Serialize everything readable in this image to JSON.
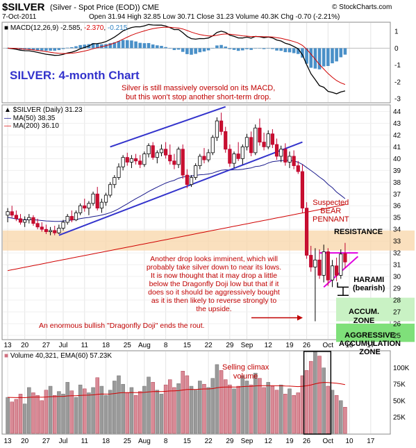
{
  "header": {
    "symbol": "$SILVER",
    "name": "(Silver - Spot Price (EOD))",
    "exchange": "CME",
    "source": "© StockCharts.com",
    "date": "7-Oct-2011",
    "ohlc": "Open 31.94  High 32.85  Low 30.71  Close 31.23  Volume 40.3K  Chg -0.70 (-2.21%)"
  },
  "macd": {
    "label_name": "MACD(12,26,9)",
    "label_v1": "-2.585",
    "label_v2": "-2.370",
    "label_v3": "-0.215",
    "axis": [
      "1",
      "0",
      "-1",
      "-2",
      "-3"
    ],
    "title": "SILVER: 4-month Chart",
    "note": [
      "Silver is still massively oversold on its MACD,",
      "but this won't stop another short-term drop."
    ]
  },
  "price": {
    "label_main": "$SILVER (Daily) 31.23",
    "label_ma50": "MA(50) 38.35",
    "label_ma200": "MA(200) 36.10",
    "axis": [
      "44",
      "43",
      "42",
      "41",
      "40",
      "39",
      "38",
      "37",
      "36",
      "35",
      "34",
      "33",
      "32",
      "31",
      "30",
      "29",
      "28",
      "27",
      "26",
      "25"
    ],
    "ann_bear": [
      "Suspected",
      "BEAR",
      "PENNANT"
    ],
    "ann_resistance": "RESISTANCE",
    "ann_harami": [
      "HARAMI",
      "(bearish)"
    ],
    "ann_accum": [
      "ACCUM.",
      "ZONE"
    ],
    "ann_aggressive": [
      "AGGRESSIVE",
      "ACCUMULATION",
      "ZONE"
    ],
    "ann_main": [
      "Another drop looks imminent, which will",
      "probably take silver down to near its lows.",
      "It is now thought that it may drop a little",
      "below the Dragonfly Doji low but that if it",
      "does so it should be aggressively bought",
      "as it is then likely to reverse strongly to",
      "the upside."
    ],
    "ann_doji": "An enormous bullish \"Dragonfly Doji\" ends the rout."
  },
  "volume": {
    "label": "Volume 40,321, EMA(60) 57.23K",
    "axis": [
      "100K",
      "75K",
      "50K",
      "25K"
    ],
    "ann_climax": [
      "Selling climax",
      "volume"
    ]
  },
  "xaxis": {
    "ticks": [
      "13",
      "20",
      "27",
      "Jul",
      "11",
      "18",
      "25",
      "Aug",
      "8",
      "15",
      "22",
      "29",
      "Sep",
      "12",
      "19",
      "26",
      "Oct",
      "10",
      "17"
    ]
  },
  "chart_data": {
    "type": "candlestick",
    "title": "SILVER: 4-month Chart",
    "x_ticks": [
      "13",
      "20",
      "27",
      "Jul",
      "11",
      "18",
      "25",
      "Aug",
      "8",
      "15",
      "22",
      "29",
      "Sep",
      "12",
      "19",
      "26",
      "Oct",
      "10",
      "17"
    ],
    "price_ylim": [
      24.7,
      44.5
    ],
    "macd_ylim": [
      -3.2,
      1.5
    ],
    "volume_ylim": [
      0,
      125
    ],
    "last": {
      "open": 31.94,
      "high": 32.85,
      "low": 30.71,
      "close": 31.23,
      "volume": 40321,
      "ma50": 38.35,
      "ma200": 36.1,
      "macd": -2.585,
      "signal": -2.37,
      "histogram": -0.215,
      "volume_ema60": 57230
    },
    "candles": [
      [
        35.2,
        35.8,
        34.6,
        35.5
      ],
      [
        35.5,
        36.0,
        35.0,
        35.2
      ],
      [
        35.2,
        35.6,
        34.7,
        34.9
      ],
      [
        34.9,
        35.3,
        34.4,
        34.6
      ],
      [
        34.6,
        35.1,
        34.2,
        34.8
      ],
      [
        34.8,
        35.3,
        34.5,
        35.0
      ],
      [
        35.0,
        35.2,
        34.3,
        34.5
      ],
      [
        34.5,
        34.9,
        34.0,
        34.2
      ],
      [
        34.2,
        34.6,
        33.8,
        34.0
      ],
      [
        34.0,
        34.4,
        33.6,
        33.8
      ],
      [
        33.8,
        34.2,
        33.5,
        33.9
      ],
      [
        33.9,
        34.3,
        33.5,
        33.7
      ],
      [
        33.7,
        34.4,
        33.6,
        34.1
      ],
      [
        34.1,
        34.8,
        33.9,
        34.6
      ],
      [
        34.6,
        35.3,
        34.4,
        35.1
      ],
      [
        35.1,
        35.6,
        34.6,
        34.8
      ],
      [
        34.8,
        35.6,
        34.7,
        35.4
      ],
      [
        35.4,
        36.2,
        35.2,
        36.0
      ],
      [
        36.0,
        36.6,
        35.5,
        35.8
      ],
      [
        35.8,
        36.4,
        35.2,
        36.2
      ],
      [
        36.2,
        37.2,
        36.0,
        37.0
      ],
      [
        37.0,
        37.6,
        35.6,
        35.8
      ],
      [
        35.8,
        36.6,
        35.4,
        36.3
      ],
      [
        36.3,
        37.1,
        36.0,
        36.9
      ],
      [
        36.9,
        38.0,
        36.7,
        37.8
      ],
      [
        37.8,
        38.6,
        37.5,
        38.4
      ],
      [
        38.4,
        39.6,
        38.2,
        39.3
      ],
      [
        39.3,
        40.3,
        39.0,
        40.1
      ],
      [
        40.1,
        40.5,
        39.4,
        39.7
      ],
      [
        39.7,
        40.3,
        39.2,
        40.0
      ],
      [
        40.0,
        40.4,
        39.5,
        39.8
      ],
      [
        39.8,
        40.3,
        39.2,
        39.5
      ],
      [
        39.5,
        40.6,
        39.3,
        40.4
      ],
      [
        40.4,
        41.3,
        40.1,
        41.1
      ],
      [
        41.1,
        41.4,
        39.9,
        40.1
      ],
      [
        40.1,
        40.7,
        39.6,
        40.5
      ],
      [
        40.5,
        41.2,
        40.2,
        40.8
      ],
      [
        40.8,
        41.4,
        40.0,
        40.3
      ],
      [
        40.3,
        41.2,
        39.5,
        39.8
      ],
      [
        39.8,
        40.4,
        39.1,
        39.5
      ],
      [
        39.5,
        41.0,
        39.2,
        40.8
      ],
      [
        40.8,
        41.2,
        38.3,
        38.6
      ],
      [
        38.6,
        39.1,
        37.5,
        37.8
      ],
      [
        37.8,
        38.6,
        37.6,
        38.4
      ],
      [
        38.4,
        39.6,
        38.2,
        39.4
      ],
      [
        39.4,
        40.4,
        39.1,
        40.2
      ],
      [
        40.2,
        40.9,
        39.6,
        39.9
      ],
      [
        39.9,
        40.8,
        39.7,
        40.5
      ],
      [
        40.5,
        42.0,
        40.3,
        41.8
      ],
      [
        41.8,
        43.5,
        41.5,
        43.2
      ],
      [
        43.2,
        43.9,
        42.0,
        42.3
      ],
      [
        42.3,
        42.7,
        40.5,
        40.8
      ],
      [
        40.8,
        41.2,
        39.3,
        39.6
      ],
      [
        39.6,
        40.6,
        39.2,
        40.4
      ],
      [
        40.4,
        41.4,
        39.8,
        40.0
      ],
      [
        40.0,
        41.2,
        39.5,
        41.0
      ],
      [
        41.0,
        42.1,
        40.7,
        41.8
      ],
      [
        41.8,
        42.3,
        40.2,
        40.5
      ],
      [
        40.5,
        42.9,
        40.3,
        42.6
      ],
      [
        42.6,
        43.4,
        41.1,
        41.4
      ],
      [
        41.4,
        42.2,
        40.7,
        41.0
      ],
      [
        41.0,
        42.4,
        40.8,
        42.1
      ],
      [
        42.1,
        42.5,
        40.9,
        41.2
      ],
      [
        41.2,
        41.7,
        39.9,
        40.2
      ],
      [
        40.2,
        41.1,
        39.7,
        40.8
      ],
      [
        40.8,
        41.3,
        39.4,
        39.7
      ],
      [
        39.7,
        40.6,
        39.2,
        40.2
      ],
      [
        40.2,
        40.7,
        39.1,
        39.4
      ],
      [
        39.4,
        39.8,
        38.7,
        38.9
      ],
      [
        38.9,
        39.5,
        35.4,
        35.8
      ],
      [
        35.8,
        36.3,
        31.5,
        31.8
      ],
      [
        31.8,
        32.6,
        30.4,
        30.8
      ],
      [
        30.8,
        32.4,
        26.2,
        31.4
      ],
      [
        31.4,
        32.3,
        29.8,
        30.1
      ],
      [
        30.1,
        32.7,
        29.5,
        32.1
      ],
      [
        32.1,
        32.4,
        29.2,
        29.7
      ],
      [
        29.7,
        31.4,
        29.1,
        30.9
      ],
      [
        30.9,
        31.6,
        29.6,
        30.1
      ],
      [
        30.1,
        32.3,
        29.8,
        31.9
      ],
      [
        31.94,
        32.85,
        30.71,
        31.23
      ]
    ],
    "volume_k": [
      55,
      48,
      52,
      60,
      45,
      70,
      62,
      58,
      50,
      66,
      72,
      58,
      64,
      60,
      78,
      65,
      55,
      74,
      68,
      62,
      70,
      85,
      72,
      58,
      66,
      80,
      88,
      75,
      62,
      70,
      58,
      64,
      72,
      86,
      78,
      66,
      60,
      74,
      82,
      70,
      76,
      95,
      88,
      72,
      66,
      80,
      75,
      70,
      84,
      105,
      96,
      82,
      74,
      68,
      72,
      88,
      80,
      74,
      92,
      84,
      70,
      78,
      72,
      66,
      74,
      60,
      68,
      58,
      62,
      88,
      96,
      110,
      125,
      118,
      100,
      72,
      66,
      58,
      50,
      40
    ]
  }
}
